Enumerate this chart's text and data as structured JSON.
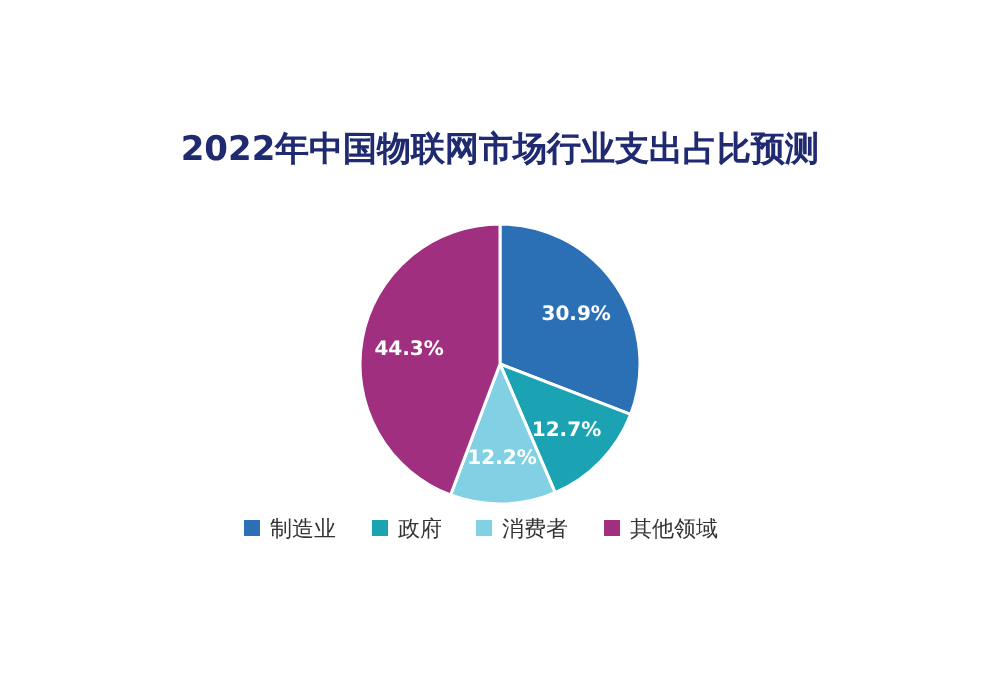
{
  "chart_data": {
    "type": "pie",
    "title": "2022年中国物联网市场行业支出占比预测",
    "categories": [
      "制造业",
      "政府",
      "消费者",
      "其他领域"
    ],
    "values": [
      30.9,
      12.7,
      12.2,
      44.3
    ],
    "colors": [
      "#2b6fb5",
      "#1ba3b3",
      "#82d0e3",
      "#a12f80"
    ],
    "value_labels": [
      "30.9%",
      "12.7%",
      "12.2%",
      "44.3%"
    ],
    "legend": "bottom"
  }
}
